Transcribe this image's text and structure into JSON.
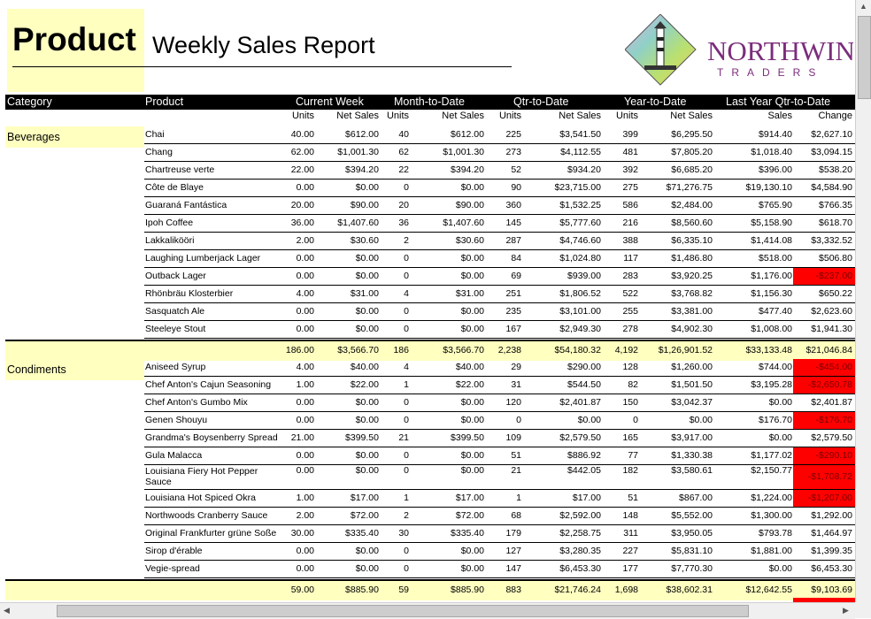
{
  "report": {
    "title_strong": "Product",
    "title_sub": "Weekly Sales Report",
    "logo_brand": "NORTHWIND",
    "logo_sub": "TRADERS"
  },
  "headers": {
    "category": "Category",
    "product": "Product",
    "current_week": "Current Week",
    "month_to_date": "Month-to-Date",
    "qtr_to_date": "Qtr-to-Date",
    "year_to_date": "Year-to-Date",
    "last_year_qtr": "Last Year Qtr-to-Date"
  },
  "subheaders": [
    "Units",
    "Net Sales",
    "Units",
    "Net Sales",
    "Units",
    "Net Sales",
    "Units",
    "Net Sales",
    "Sales",
    "Change"
  ],
  "colors": {
    "highlight": "#ffffc0",
    "negative": "#ff0000",
    "header": "#000000"
  },
  "groups": [
    {
      "category": "Beverages",
      "rows": [
        [
          "Chai",
          "40.00",
          "$612.00",
          "40",
          "$612.00",
          "225",
          "$3,541.50",
          "399",
          "$6,295.50",
          "$914.40",
          "$2,627.10"
        ],
        [
          "Chang",
          "62.00",
          "$1,001.30",
          "62",
          "$1,001.30",
          "273",
          "$4,112.55",
          "481",
          "$7,805.20",
          "$1,018.40",
          "$3,094.15"
        ],
        [
          "Chartreuse verte",
          "22.00",
          "$394.20",
          "22",
          "$394.20",
          "52",
          "$934.20",
          "392",
          "$6,685.20",
          "$396.00",
          "$538.20"
        ],
        [
          "Côte de Blaye",
          "0.00",
          "$0.00",
          "0",
          "$0.00",
          "90",
          "$23,715.00",
          "275",
          "$71,276.75",
          "$19,130.10",
          "$4,584.90"
        ],
        [
          "Guaraná Fantástica",
          "20.00",
          "$90.00",
          "20",
          "$90.00",
          "360",
          "$1,532.25",
          "586",
          "$2,484.00",
          "$765.90",
          "$766.35"
        ],
        [
          "Ipoh Coffee",
          "36.00",
          "$1,407.60",
          "36",
          "$1,407.60",
          "145",
          "$5,777.60",
          "216",
          "$8,560.60",
          "$5,158.90",
          "$618.70"
        ],
        [
          "Lakkalikööri",
          "2.00",
          "$30.60",
          "2",
          "$30.60",
          "287",
          "$4,746.60",
          "388",
          "$6,335.10",
          "$1,414.08",
          "$3,332.52"
        ],
        [
          "Laughing Lumberjack Lager",
          "0.00",
          "$0.00",
          "0",
          "$0.00",
          "84",
          "$1,024.80",
          "117",
          "$1,486.80",
          "$518.00",
          "$506.80"
        ],
        [
          "Outback Lager",
          "0.00",
          "$0.00",
          "0",
          "$0.00",
          "69",
          "$939.00",
          "283",
          "$3,920.25",
          "$1,176.00",
          "-$237.00"
        ],
        [
          "Rhönbräu Klosterbier",
          "4.00",
          "$31.00",
          "4",
          "$31.00",
          "251",
          "$1,806.52",
          "522",
          "$3,768.82",
          "$1,156.30",
          "$650.22"
        ],
        [
          "Sasquatch Ale",
          "0.00",
          "$0.00",
          "0",
          "$0.00",
          "235",
          "$3,101.00",
          "255",
          "$3,381.00",
          "$477.40",
          "$2,623.60"
        ],
        [
          "Steeleye Stout",
          "0.00",
          "$0.00",
          "0",
          "$0.00",
          "167",
          "$2,949.30",
          "278",
          "$4,902.30",
          "$1,008.00",
          "$1,941.30"
        ]
      ],
      "totals": [
        "186.00",
        "$3,566.70",
        "186",
        "$3,566.70",
        "2,238",
        "$54,180.32",
        "4,192",
        "$1,26,901.52",
        "$33,133.48",
        "$21,046.84"
      ]
    },
    {
      "category": "Condiments",
      "rows": [
        [
          "Aniseed Syrup",
          "4.00",
          "$40.00",
          "4",
          "$40.00",
          "29",
          "$290.00",
          "128",
          "$1,260.00",
          "$744.00",
          "-$454.00"
        ],
        [
          "Chef Anton's Cajun Seasoning",
          "1.00",
          "$22.00",
          "1",
          "$22.00",
          "31",
          "$544.50",
          "82",
          "$1,501.50",
          "$3,195.28",
          "-$2,650.78"
        ],
        [
          "Chef Anton's Gumbo Mix",
          "0.00",
          "$0.00",
          "0",
          "$0.00",
          "120",
          "$2,401.87",
          "150",
          "$3,042.37",
          "$0.00",
          "$2,401.87"
        ],
        [
          "Genen Shouyu",
          "0.00",
          "$0.00",
          "0",
          "$0.00",
          "0",
          "$0.00",
          "0",
          "$0.00",
          "$176.70",
          "-$176.70"
        ],
        [
          "Grandma's Boysenberry Spread",
          "21.00",
          "$399.50",
          "21",
          "$399.50",
          "109",
          "$2,579.50",
          "165",
          "$3,917.00",
          "$0.00",
          "$2,579.50"
        ],
        [
          "Gula Malacca",
          "0.00",
          "$0.00",
          "0",
          "$0.00",
          "51",
          "$886.92",
          "77",
          "$1,330.38",
          "$1,177.02",
          "-$290.10"
        ],
        [
          "Louisiana Fiery Hot Pepper Sauce",
          "0.00",
          "$0.00",
          "0",
          "$0.00",
          "21",
          "$442.05",
          "182",
          "$3,580.61",
          "$2,150.77",
          "-$1,708.72"
        ],
        [
          "Louisiana Hot Spiced Okra",
          "1.00",
          "$17.00",
          "1",
          "$17.00",
          "1",
          "$17.00",
          "51",
          "$867.00",
          "$1,224.00",
          "-$1,207.00"
        ],
        [
          "Northwoods Cranberry Sauce",
          "2.00",
          "$72.00",
          "2",
          "$72.00",
          "68",
          "$2,592.00",
          "148",
          "$5,552.00",
          "$1,300.00",
          "$1,292.00"
        ],
        [
          "Original Frankfurter grüne Soße",
          "30.00",
          "$335.40",
          "30",
          "$335.40",
          "179",
          "$2,258.75",
          "311",
          "$3,950.05",
          "$793.78",
          "$1,464.97"
        ],
        [
          "Sirop d'érable",
          "0.00",
          "$0.00",
          "0",
          "$0.00",
          "127",
          "$3,280.35",
          "227",
          "$5,831.10",
          "$1,881.00",
          "$1,399.35"
        ],
        [
          "Vegie-spread",
          "0.00",
          "$0.00",
          "0",
          "$0.00",
          "147",
          "$6,453.30",
          "177",
          "$7,770.30",
          "$0.00",
          "$6,453.30"
        ]
      ],
      "totals": [
        "59.00",
        "$885.90",
        "59",
        "$885.90",
        "883",
        "$21,746.24",
        "1,698",
        "$38,602.31",
        "$12,642.55",
        "$9,103.69"
      ]
    }
  ]
}
